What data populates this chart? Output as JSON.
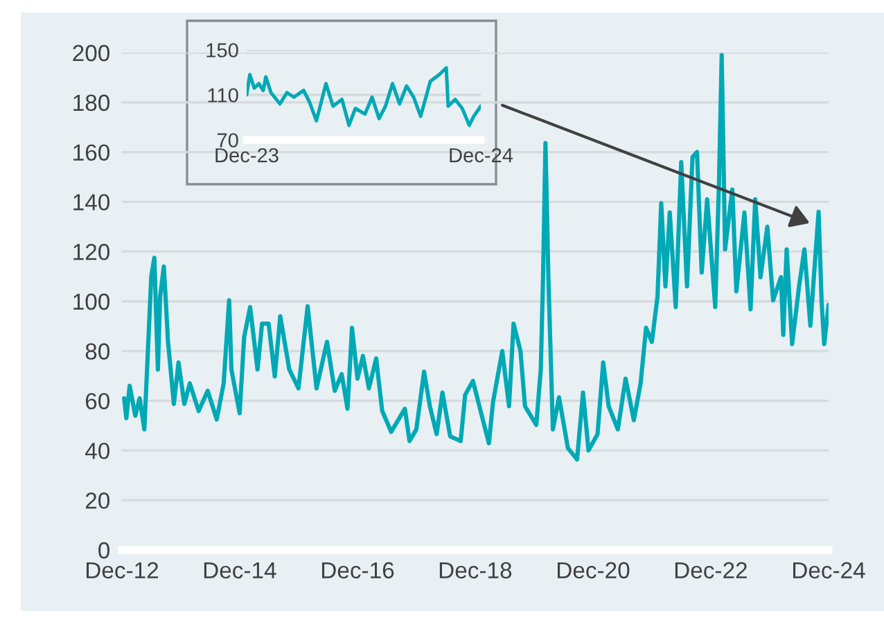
{
  "chart_data": [
    {
      "type": "line",
      "x": [
        "2012-12-15",
        "2012-12-28",
        "2013-01-18",
        "2013-02-22",
        "2013-03-21",
        "2013-04-19",
        "2013-05-11",
        "2013-06-01",
        "2013-06-20",
        "2013-07-12",
        "2013-07-26",
        "2013-08-18",
        "2013-09-13",
        "2013-10-19",
        "2013-11-17",
        "2013-12-23",
        "2014-01-26",
        "2014-03-22",
        "2014-05-17",
        "2014-07-12",
        "2014-08-24",
        "2014-09-27",
        "2014-10-11",
        "2014-12-01",
        "2014-12-29",
        "2015-02-04",
        "2015-03-22",
        "2015-04-19",
        "2015-05-30",
        "2015-07-07",
        "2015-08-10",
        "2015-10-05",
        "2015-12-01",
        "2016-01-27",
        "2016-03-22",
        "2016-05-26",
        "2016-07-13",
        "2016-08-25",
        "2016-09-30",
        "2016-10-28",
        "2016-12-01",
        "2017-01-04",
        "2017-02-10",
        "2017-03-27",
        "2017-05-03",
        "2017-06-28",
        "2017-09-21",
        "2017-10-20",
        "2017-12-01",
        "2018-01-18",
        "2018-02-23",
        "2018-04-06",
        "2018-05-12",
        "2018-06-29",
        "2018-09-02",
        "2018-09-30",
        "2018-11-17",
        "2019-02-24",
        "2019-03-22",
        "2019-05-18",
        "2019-06-29",
        "2019-07-27",
        "2019-09-08",
        "2019-10-06",
        "2019-12-15",
        "2020-01-12",
        "2020-01-26",
        "2020-02-10",
        "2020-02-28",
        "2020-03-27",
        "2020-05-04",
        "2020-06-28",
        "2020-08-24",
        "2020-09-30",
        "2020-11-03",
        "2020-12-29",
        "2021-02-02",
        "2021-03-08",
        "2021-05-04",
        "2021-06-21",
        "2021-08-11",
        "2021-09-22",
        "2021-10-26",
        "2021-12-01",
        "2022-01-05",
        "2022-01-28",
        "2022-02-23",
        "2022-03-22",
        "2022-04-28",
        "2022-06-01",
        "2022-07-07",
        "2022-08-10",
        "2022-09-07",
        "2022-10-06",
        "2022-11-09",
        "2022-12-29",
        "2023-01-21",
        "2023-02-07",
        "2023-02-28",
        "2023-04-14",
        "2023-05-09",
        "2023-06-28",
        "2023-08-05",
        "2023-09-03",
        "2023-10-06",
        "2023-11-17",
        "2023-12-23",
        "2024-02-10",
        "2024-02-24",
        "2024-03-16",
        "2024-04-19",
        "2024-06-01",
        "2024-07-04",
        "2024-08-10",
        "2024-09-30",
        "2024-10-19",
        "2024-11-04",
        "2024-12-01"
      ],
      "series": [
        {
          "color": "#00a9b5",
          "values": [
            61,
            53,
            66,
            54,
            61,
            48.5,
            80,
            110,
            117.5,
            72.6,
            102,
            114,
            83.7,
            58.7,
            75.4,
            58.7,
            67,
            55.9,
            64,
            52.5,
            67,
            100.4,
            72.6,
            55,
            85.6,
            97.7,
            72.6,
            91,
            91,
            69.8,
            94,
            72.6,
            65,
            98,
            65,
            83.7,
            64,
            70.7,
            56.8,
            89.3,
            68.9,
            78,
            65,
            77,
            56,
            47.5,
            56.8,
            43.8,
            48.5,
            71.7,
            57.8,
            46.6,
            63.3,
            45.7,
            43.8,
            62.4,
            68,
            42.9,
            59.6,
            80,
            57.8,
            91,
            80,
            57.8,
            50.3,
            72.6,
            109.7,
            163.6,
            109.7,
            48.5,
            61.4,
            41,
            36.4,
            63.3,
            40,
            46.6,
            75.4,
            57.8,
            48.5,
            68.9,
            52.2,
            67,
            89.3,
            83.7,
            102,
            139.5,
            106,
            135.7,
            97.7,
            156,
            106,
            158,
            160,
            111.6,
            141,
            97.7,
            146.9,
            199,
            120.9,
            145,
            104,
            135.7,
            96.8,
            141,
            109.7,
            130,
            100.4,
            109.7,
            86.5,
            120.9,
            82.8,
            106,
            120.9,
            90.2,
            136,
            99.5,
            82.8,
            98.6
          ]
        }
      ],
      "xlim": [
        "2012-12-01",
        "2024-12-01"
      ],
      "xticks": [
        {
          "value": "2012-12-01",
          "label": "Dec-12"
        },
        {
          "value": "2014-12-01",
          "label": "Dec-14"
        },
        {
          "value": "2016-12-01",
          "label": "Dec-16"
        },
        {
          "value": "2018-12-01",
          "label": "Dec-18"
        },
        {
          "value": "2020-12-01",
          "label": "Dec-20"
        },
        {
          "value": "2022-12-01",
          "label": "Dec-22"
        },
        {
          "value": "2024-12-01",
          "label": "Dec-24"
        }
      ],
      "ylim": [
        0,
        200
      ],
      "yticks": [
        0,
        20,
        40,
        60,
        80,
        100,
        120,
        140,
        160,
        180,
        200
      ],
      "grid": "y"
    },
    {
      "type": "line",
      "x": [
        "2023-12-01",
        "2023-12-06",
        "2023-12-13",
        "2023-12-20",
        "2023-12-27",
        "2023-12-31",
        "2024-01-08",
        "2024-01-22",
        "2024-02-02",
        "2024-02-13",
        "2024-02-28",
        "2024-03-08",
        "2024-03-19",
        "2024-04-03",
        "2024-04-14",
        "2024-04-28",
        "2024-05-09",
        "2024-05-19",
        "2024-06-03",
        "2024-06-14",
        "2024-06-25",
        "2024-07-05",
        "2024-07-16",
        "2024-07-27",
        "2024-08-07",
        "2024-08-18",
        "2024-08-29",
        "2024-09-13",
        "2024-09-27",
        "2024-10-08",
        "2024-10-11",
        "2024-10-22",
        "2024-11-02",
        "2024-11-13",
        "2024-11-20",
        "2024-12-01"
      ],
      "series": [
        {
          "color": "#00a9b5",
          "values": [
            110,
            128,
            116,
            120,
            114,
            126,
            112,
            102,
            112,
            108,
            114,
            104,
            87,
            120,
            100,
            106,
            83,
            98,
            93,
            108,
            89,
            100,
            120,
            102,
            118,
            108,
            91,
            122,
            128,
            134,
            100,
            106,
            98,
            83,
            91,
            100
          ]
        }
      ],
      "xlim": [
        "2023-12-01",
        "2024-12-01"
      ],
      "xticks": [
        {
          "value": "2023-12-01",
          "label": "Dec-23"
        },
        {
          "value": "2024-12-01",
          "label": "Dec-24"
        }
      ],
      "ylim": [
        70,
        150
      ],
      "yticks": [
        70,
        110,
        150
      ],
      "grid": "y"
    }
  ]
}
